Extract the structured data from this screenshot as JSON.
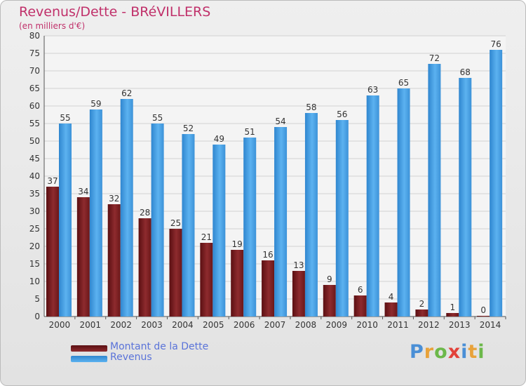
{
  "header": {
    "title": "Revenus/Dette - BRéVILLERS",
    "subtitle": "(en milliers d'€)"
  },
  "chart_data": {
    "type": "bar",
    "title": "Revenus/Dette - BRéVILLERS",
    "subtitle": "(en milliers d'€)",
    "categories": [
      "2000",
      "2001",
      "2002",
      "2003",
      "2004",
      "2005",
      "2006",
      "2007",
      "2008",
      "2009",
      "2010",
      "2011",
      "2012",
      "2013",
      "2014"
    ],
    "series": [
      {
        "name": "Montant de la Dette",
        "color": "#7a1f22",
        "values": [
          37,
          34,
          32,
          28,
          25,
          21,
          19,
          16,
          13,
          9,
          6,
          4,
          2,
          1,
          0
        ]
      },
      {
        "name": "Revenus",
        "color": "#4aa3e6",
        "values": [
          55,
          59,
          62,
          55,
          52,
          49,
          51,
          54,
          58,
          56,
          63,
          65,
          72,
          68,
          76
        ]
      }
    ],
    "ylim": [
      0,
      80
    ],
    "yticks": [
      0,
      5,
      10,
      15,
      20,
      25,
      30,
      35,
      40,
      45,
      50,
      55,
      60,
      65,
      70,
      75,
      80
    ],
    "grid": true,
    "data_labels": true,
    "legend": "bottom-left"
  },
  "legend": {
    "items": [
      {
        "label": "Montant de la Dette",
        "color": "#7a1f22"
      },
      {
        "label": "Revenus",
        "color": "#4aa3e6"
      }
    ]
  },
  "logo": {
    "letters": [
      {
        "char": "P",
        "color": "#4a8fd6"
      },
      {
        "char": "r",
        "color": "#e8a23a"
      },
      {
        "char": "o",
        "color": "#6cb84a"
      },
      {
        "char": "x",
        "color": "#e2423a"
      },
      {
        "char": "i",
        "color": "#4a8fd6"
      },
      {
        "char": "t",
        "color": "#e8a23a"
      },
      {
        "char": "i",
        "color": "#6cb84a"
      }
    ]
  }
}
